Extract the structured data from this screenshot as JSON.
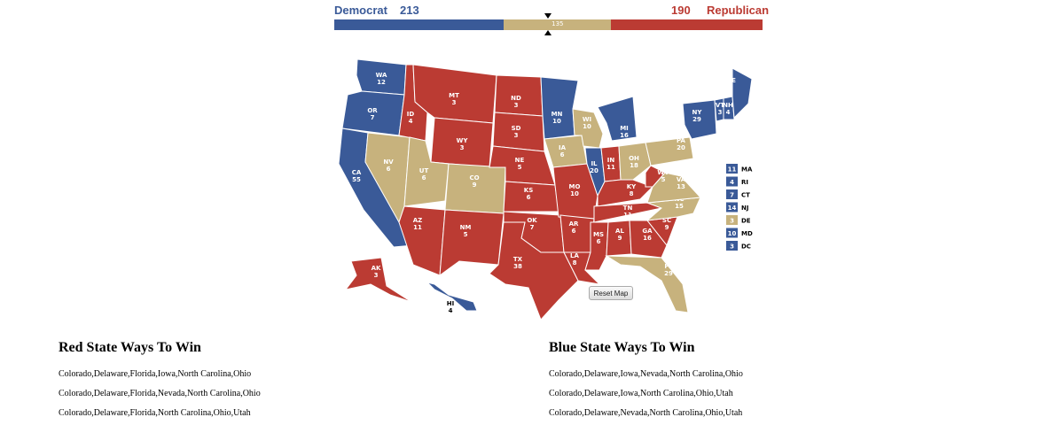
{
  "tally": {
    "dem_label": "Democrat",
    "dem_votes": "213",
    "rep_votes": "190",
    "rep_label": "Republican",
    "tossup_votes": "135",
    "dem_value": 213,
    "tossup_value": 135,
    "rep_value": 190,
    "colors": {
      "dem": "#3a5a98",
      "tossup": "#c7b27d",
      "rep": "#bb3b33"
    }
  },
  "map": {
    "states": [
      {
        "abbr": "WA",
        "ev": "12",
        "party": "dem"
      },
      {
        "abbr": "OR",
        "ev": "7",
        "party": "dem"
      },
      {
        "abbr": "CA",
        "ev": "55",
        "party": "dem"
      },
      {
        "abbr": "NV",
        "ev": "6",
        "party": "tossup"
      },
      {
        "abbr": "ID",
        "ev": "4",
        "party": "rep"
      },
      {
        "abbr": "MT",
        "ev": "3",
        "party": "rep"
      },
      {
        "abbr": "WY",
        "ev": "3",
        "party": "rep"
      },
      {
        "abbr": "UT",
        "ev": "6",
        "party": "tossup"
      },
      {
        "abbr": "CO",
        "ev": "9",
        "party": "tossup"
      },
      {
        "abbr": "AZ",
        "ev": "11",
        "party": "rep"
      },
      {
        "abbr": "NM",
        "ev": "5",
        "party": "rep"
      },
      {
        "abbr": "ND",
        "ev": "3",
        "party": "rep"
      },
      {
        "abbr": "SD",
        "ev": "3",
        "party": "rep"
      },
      {
        "abbr": "NE",
        "ev": "5",
        "party": "rep"
      },
      {
        "abbr": "KS",
        "ev": "6",
        "party": "rep"
      },
      {
        "abbr": "OK",
        "ev": "7",
        "party": "rep"
      },
      {
        "abbr": "TX",
        "ev": "38",
        "party": "rep"
      },
      {
        "abbr": "MN",
        "ev": "10",
        "party": "dem"
      },
      {
        "abbr": "IA",
        "ev": "6",
        "party": "tossup"
      },
      {
        "abbr": "MO",
        "ev": "10",
        "party": "rep"
      },
      {
        "abbr": "AR",
        "ev": "6",
        "party": "rep"
      },
      {
        "abbr": "LA",
        "ev": "8",
        "party": "rep"
      },
      {
        "abbr": "WI",
        "ev": "10",
        "party": "tossup"
      },
      {
        "abbr": "IL",
        "ev": "20",
        "party": "dem"
      },
      {
        "abbr": "MI",
        "ev": "16",
        "party": "dem"
      },
      {
        "abbr": "IN",
        "ev": "11",
        "party": "rep"
      },
      {
        "abbr": "OH",
        "ev": "18",
        "party": "tossup"
      },
      {
        "abbr": "KY",
        "ev": "8",
        "party": "rep"
      },
      {
        "abbr": "TN",
        "ev": "11",
        "party": "rep"
      },
      {
        "abbr": "MS",
        "ev": "6",
        "party": "rep"
      },
      {
        "abbr": "AL",
        "ev": "9",
        "party": "rep"
      },
      {
        "abbr": "GA",
        "ev": "16",
        "party": "rep"
      },
      {
        "abbr": "FL",
        "ev": "29",
        "party": "tossup"
      },
      {
        "abbr": "SC",
        "ev": "9",
        "party": "rep"
      },
      {
        "abbr": "NC",
        "ev": "15",
        "party": "tossup"
      },
      {
        "abbr": "VA",
        "ev": "13",
        "party": "tossup"
      },
      {
        "abbr": "WV",
        "ev": "5",
        "party": "rep"
      },
      {
        "abbr": "PA",
        "ev": "20",
        "party": "tossup"
      },
      {
        "abbr": "NY",
        "ev": "29",
        "party": "dem"
      },
      {
        "abbr": "VT",
        "ev": "3",
        "party": "dem"
      },
      {
        "abbr": "NH",
        "ev": "4",
        "party": "dem"
      },
      {
        "abbr": "ME",
        "ev": "4",
        "party": "dem"
      },
      {
        "abbr": "AK",
        "ev": "3",
        "party": "rep"
      },
      {
        "abbr": "HI",
        "ev": "4",
        "party": "dem"
      }
    ],
    "small_states": [
      {
        "abbr": "MA",
        "ev": "11",
        "party": "dem"
      },
      {
        "abbr": "RI",
        "ev": "4",
        "party": "dem"
      },
      {
        "abbr": "CT",
        "ev": "7",
        "party": "dem"
      },
      {
        "abbr": "NJ",
        "ev": "14",
        "party": "dem"
      },
      {
        "abbr": "DE",
        "ev": "3",
        "party": "tossup"
      },
      {
        "abbr": "MD",
        "ev": "10",
        "party": "dem"
      },
      {
        "abbr": "DC",
        "ev": "3",
        "party": "dem"
      }
    ],
    "reset_label": "Reset Map"
  },
  "red_ways": {
    "title": "Red State Ways To Win",
    "combos": [
      "Colorado,Delaware,Florida,Iowa,North Carolina,Ohio",
      "Colorado,Delaware,Florida,Nevada,North Carolina,Ohio",
      "Colorado,Delaware,Florida,North Carolina,Ohio,Utah"
    ]
  },
  "blue_ways": {
    "title": "Blue State Ways To Win",
    "combos": [
      "Colorado,Delaware,Iowa,Nevada,North Carolina,Ohio",
      "Colorado,Delaware,Iowa,North Carolina,Ohio,Utah",
      "Colorado,Delaware,Nevada,North Carolina,Ohio,Utah"
    ]
  }
}
